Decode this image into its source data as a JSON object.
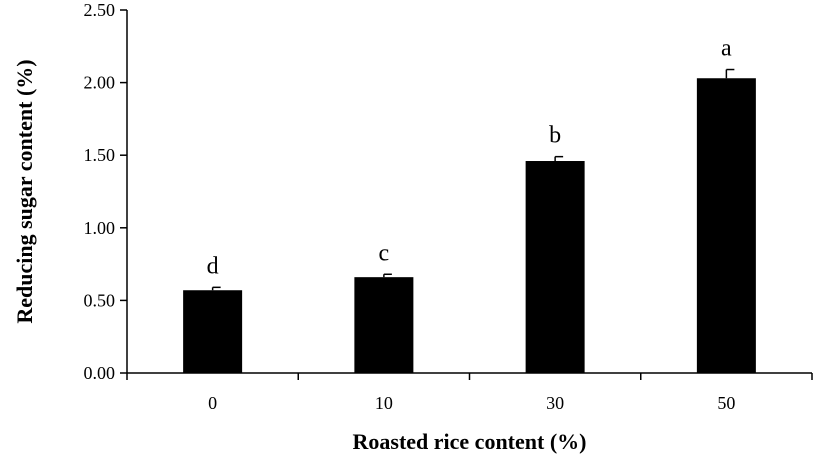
{
  "chart_data": {
    "type": "bar",
    "categories": [
      "0",
      "10",
      "30",
      "50"
    ],
    "values": [
      0.57,
      0.66,
      1.46,
      2.03
    ],
    "errors": [
      0.02,
      0.02,
      0.03,
      0.06
    ],
    "significance_labels": [
      "d",
      "c",
      "b",
      "a"
    ],
    "xlabel": "Roasted rice content (%)",
    "ylabel": "Reducing sugar content  (%)",
    "ylim": [
      0,
      2.5
    ],
    "yticks": [
      "0.00",
      "0.50",
      "1.00",
      "1.50",
      "2.00",
      "2.50"
    ],
    "grid": false,
    "legend": "none",
    "bar_color": "#000000"
  }
}
